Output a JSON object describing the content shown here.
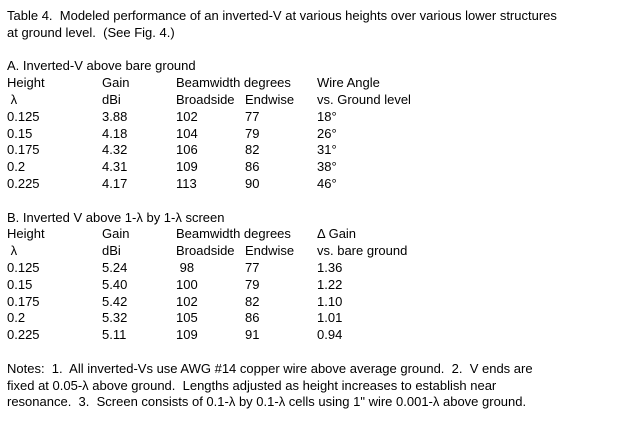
{
  "caption": {
    "lines": [
      "Table 4.  Modeled performance of an inverted-V at various heights over various lower structures",
      "at ground level.  (See Fig. 4.)"
    ]
  },
  "section_a": {
    "heading": "A. Inverted-V above bare ground",
    "header1": {
      "height": "Height",
      "gain": "Gain",
      "beamwidth": "Beamwidth degrees",
      "last": "Wire Angle"
    },
    "header2": {
      "height": " λ",
      "gain": "dBi",
      "broadside": "Broadside",
      "endwise": "Endwise",
      "last": "vs. Ground level"
    },
    "rows": [
      [
        "0.125",
        "3.88",
        "102",
        "77",
        "18°"
      ],
      [
        "0.15",
        "4.18",
        "104",
        "79",
        "26°"
      ],
      [
        "0.175",
        "4.32",
        "106",
        "82",
        "31°"
      ],
      [
        "0.2",
        "4.31",
        "109",
        "86",
        "38°"
      ],
      [
        "0.225",
        "4.17",
        "113",
        "90",
        "46°"
      ]
    ]
  },
  "section_b": {
    "heading": "B. Inverted V above 1-λ by 1-λ screen",
    "header1": {
      "height": "Height",
      "gain": "Gain",
      "beamwidth": "Beamwidth degrees",
      "last": "Δ Gain"
    },
    "header2": {
      "height": " λ",
      "gain": "dBi",
      "broadside": "Broadside",
      "endwise": "Endwise",
      "last": "vs. bare ground"
    },
    "rows": [
      [
        "0.125",
        "5.24",
        " 98",
        "77",
        "1.36"
      ],
      [
        "0.15",
        "5.40",
        "100",
        "79",
        "1.22"
      ],
      [
        "0.175",
        "5.42",
        "102",
        "82",
        "1.10"
      ],
      [
        "0.2",
        "5.32",
        "105",
        "86",
        "1.01"
      ],
      [
        "0.225",
        "5.11",
        "109",
        "91",
        "0.94"
      ]
    ]
  },
  "notes": {
    "lines": [
      "Notes:  1.  All inverted-Vs use AWG #14 copper wire above average ground.  2.  V ends are",
      "fixed at 0.05-λ above ground.  Lengths adjusted as height increases to establish near",
      "resonance.  3.  Screen consists of 0.1-λ by 0.1-λ cells using 1\" wire 0.001-λ above ground."
    ]
  }
}
